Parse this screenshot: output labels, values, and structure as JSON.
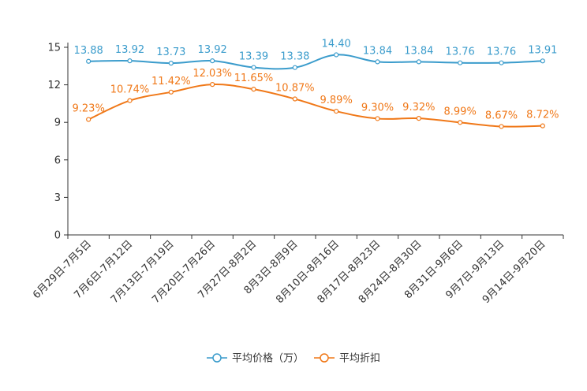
{
  "chart_data": {
    "type": "line",
    "categories": [
      "6月29日-7月5日",
      "7月6日-7月12日",
      "7月13日-7月19日",
      "7月20日-7月26日",
      "7月27日-8月2日",
      "8月3日-8月9日",
      "8月10日-8月16日",
      "8月17日-8月23日",
      "8月24日-8月30日",
      "8月31日-9月6日",
      "9月7日-9月13日",
      "9月14日-9月20日"
    ],
    "ylim": [
      0,
      15
    ],
    "yticks": [
      0,
      3,
      6,
      9,
      12,
      15
    ],
    "series": [
      {
        "name": "平均价格（万）",
        "color": "#3b9ccc",
        "values": [
          13.88,
          13.92,
          13.73,
          13.92,
          13.39,
          13.38,
          14.4,
          13.84,
          13.84,
          13.76,
          13.76,
          13.91
        ],
        "labels": [
          "13.88",
          "13.92",
          "13.73",
          "13.92",
          "13.39",
          "13.38",
          "14.40",
          "13.84",
          "13.84",
          "13.76",
          "13.76",
          "13.91"
        ]
      },
      {
        "name": "平均折扣",
        "color": "#f07818",
        "values": [
          9.23,
          10.74,
          11.42,
          12.03,
          11.65,
          10.87,
          9.89,
          9.3,
          9.32,
          8.99,
          8.67,
          8.72
        ],
        "labels": [
          "9.23%",
          "10.74%",
          "11.42%",
          "12.03%",
          "11.65%",
          "10.87%",
          "9.89%",
          "9.30%",
          "9.32%",
          "8.99%",
          "8.67%",
          "8.72%"
        ]
      }
    ],
    "legend_position": "bottom-center",
    "grid": false
  }
}
